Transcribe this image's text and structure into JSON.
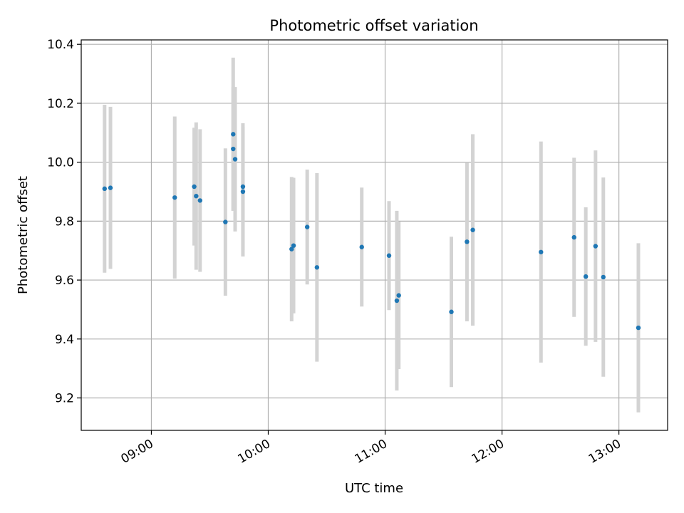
{
  "chart_data": {
    "type": "scatter",
    "title": "Photometric offset variation",
    "xlabel": "UTC time",
    "ylabel": "Photometric offset",
    "xlim": [
      "08:24",
      "13:25"
    ],
    "ylim": [
      9.09,
      10.415
    ],
    "grid": true,
    "xticks": [
      "09:00",
      "10:00",
      "11:00",
      "12:00",
      "13:00"
    ],
    "yticks": [
      "9.2",
      "9.4",
      "9.6",
      "9.8",
      "10.0",
      "10.2",
      "10.4"
    ],
    "marker_color": "#1f77b4",
    "errorbar_color": "#d3d3d3",
    "series": [
      {
        "name": "Photometric offset",
        "points": [
          {
            "time": "08:36",
            "y": 9.91,
            "yerr": 0.285
          },
          {
            "time": "08:39",
            "y": 9.913,
            "yerr": 0.275
          },
          {
            "time": "09:12",
            "y": 9.88,
            "yerr": 0.275
          },
          {
            "time": "09:22",
            "y": 9.917,
            "yerr": 0.2
          },
          {
            "time": "09:23",
            "y": 9.885,
            "yerr": 0.25
          },
          {
            "time": "09:25",
            "y": 9.87,
            "yerr": 0.242
          },
          {
            "time": "09:38",
            "y": 9.797,
            "yerr": 0.25
          },
          {
            "time": "09:42",
            "y": 10.095,
            "yerr": 0.26
          },
          {
            "time": "09:42",
            "y": 10.045,
            "yerr": 0.21
          },
          {
            "time": "09:43",
            "y": 10.01,
            "yerr": 0.245
          },
          {
            "time": "09:47",
            "y": 9.917,
            "yerr": 0.215
          },
          {
            "time": "09:47",
            "y": 9.9,
            "yerr": 0.22
          },
          {
            "time": "10:12",
            "y": 9.705,
            "yerr": 0.245
          },
          {
            "time": "10:13",
            "y": 9.717,
            "yerr": 0.23
          },
          {
            "time": "10:20",
            "y": 9.78,
            "yerr": 0.195
          },
          {
            "time": "10:25",
            "y": 9.643,
            "yerr": 0.32
          },
          {
            "time": "10:48",
            "y": 9.712,
            "yerr": 0.202
          },
          {
            "time": "11:02",
            "y": 9.683,
            "yerr": 0.185
          },
          {
            "time": "11:06",
            "y": 9.53,
            "yerr": 0.305
          },
          {
            "time": "11:07",
            "y": 9.548,
            "yerr": 0.25
          },
          {
            "time": "11:34",
            "y": 9.492,
            "yerr": 0.255
          },
          {
            "time": "11:42",
            "y": 9.73,
            "yerr": 0.27
          },
          {
            "time": "11:45",
            "y": 9.77,
            "yerr": 0.325
          },
          {
            "time": "12:20",
            "y": 9.695,
            "yerr": 0.375
          },
          {
            "time": "12:37",
            "y": 9.745,
            "yerr": 0.27
          },
          {
            "time": "12:43",
            "y": 9.612,
            "yerr": 0.235
          },
          {
            "time": "12:48",
            "y": 9.715,
            "yerr": 0.325
          },
          {
            "time": "12:52",
            "y": 9.61,
            "yerr": 0.338
          },
          {
            "time": "13:10",
            "y": 9.438,
            "yerr": 0.287
          }
        ]
      }
    ]
  }
}
